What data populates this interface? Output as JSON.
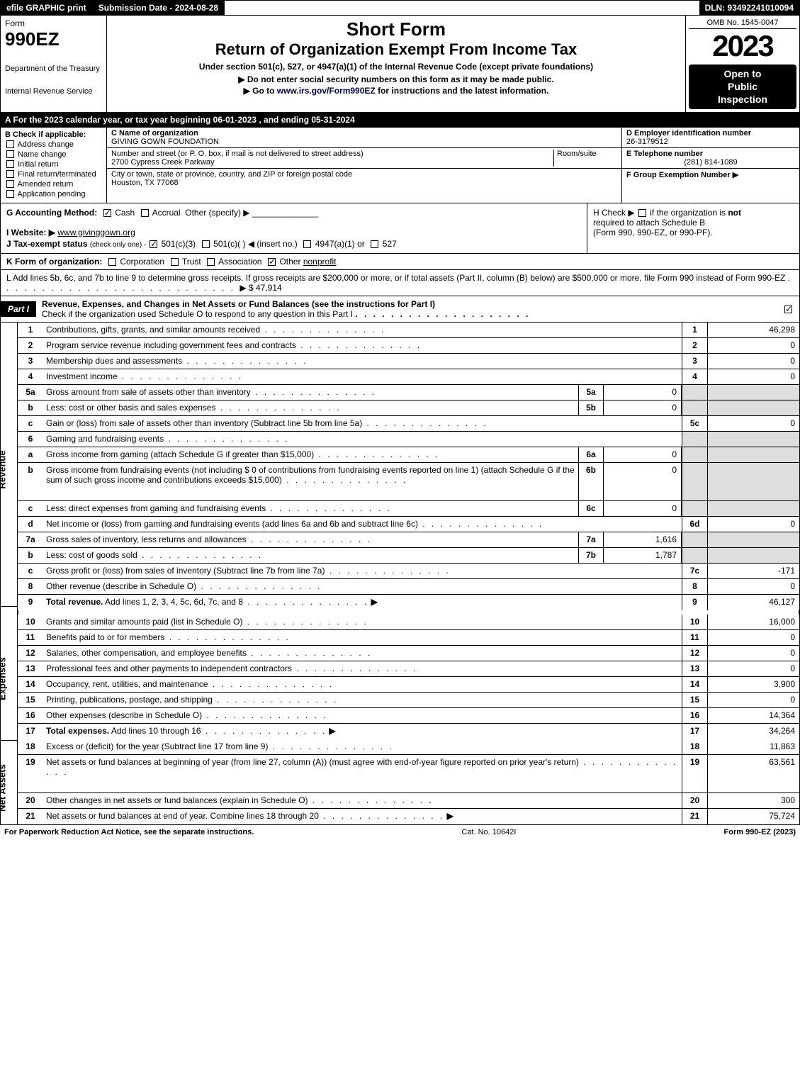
{
  "topbar": {
    "efile": "efile GRAPHIC print",
    "submission": "Submission Date - 2024-08-28",
    "dln": "DLN: 93492241010094"
  },
  "header": {
    "form_word": "Form",
    "form_num": "990EZ",
    "dept1": "Department of the Treasury",
    "dept2": "Internal Revenue Service",
    "short": "Short Form",
    "return": "Return of Organization Exempt From Income Tax",
    "under": "Under section 501(c), 527, or 4947(a)(1) of the Internal Revenue Code (except private foundations)",
    "note1": "▶ Do not enter social security numbers on this form as it may be made public.",
    "note2_pre": "▶ Go to ",
    "note2_link": "www.irs.gov/Form990EZ",
    "note2_post": " for instructions and the latest information.",
    "omb": "OMB No. 1545-0047",
    "year": "2023",
    "open1": "Open to",
    "open2": "Public",
    "open3": "Inspection"
  },
  "rowA": "A  For the 2023 calendar year, or tax year beginning 06-01-2023 , and ending 05-31-2024",
  "B": {
    "hdr": "B  Check if applicable:",
    "opts": [
      "Address change",
      "Name change",
      "Initial return",
      "Final return/terminated",
      "Amended return",
      "Application pending"
    ]
  },
  "C": {
    "name_lbl": "C Name of organization",
    "name": "GIVING GOWN FOUNDATION",
    "street_lbl": "Number and street (or P. O. box, if mail is not delivered to street address)",
    "room_lbl": "Room/suite",
    "street": "2700 Cypress Creek Parkway",
    "city_lbl": "City or town, state or province, country, and ZIP or foreign postal code",
    "city": "Houston, TX  77068"
  },
  "D": {
    "lbl": "D Employer identification number",
    "val": "26-3179512"
  },
  "E": {
    "lbl": "E Telephone number",
    "val": "(281) 814-1089"
  },
  "F": {
    "lbl": "F Group Exemption Number",
    "arrow": "▶"
  },
  "G": {
    "lbl": "G Accounting Method:",
    "cash": "Cash",
    "accrual": "Accrual",
    "other": "Other (specify) ▶"
  },
  "H": {
    "pre": "H  Check ▶",
    "post": "if the organization is ",
    "not": "not",
    "line2": "required to attach Schedule B",
    "line3": "(Form 990, 990-EZ, or 990-PF)."
  },
  "I": {
    "lbl": "I Website: ▶",
    "val": "www.givinggown.org"
  },
  "J": {
    "pre": "J Tax-exempt status ",
    "small": "(check only one) - ",
    "a": "501(c)(3)",
    "b": "501(c)(   ) ◀ (insert no.)",
    "c": "4947(a)(1) or",
    "d": "527"
  },
  "K": {
    "lbl": "K Form of organization:",
    "opts": [
      "Corporation",
      "Trust",
      "Association",
      "Other"
    ],
    "other_val": "nonprofit"
  },
  "L": {
    "text": "L Add lines 5b, 6c, and 7b to line 9 to determine gross receipts. If gross receipts are $200,000 or more, or if total assets (Part II, column (B) below) are $500,000 or more, file Form 990 instead of Form 990-EZ",
    "arrow": "▶ $",
    "val": "47,914"
  },
  "partI": {
    "tag": "Part I",
    "title": "Revenue, Expenses, and Changes in Net Assets or Fund Balances (see the instructions for Part I)",
    "sub": "Check if the organization used Schedule O to respond to any question in this Part I"
  },
  "sections": {
    "revenue_label": "Revenue",
    "expenses_label": "Expenses",
    "netassets_label": "Net Assets"
  },
  "revenue": [
    {
      "n": "1",
      "d": "Contributions, gifts, grants, and similar amounts received",
      "rn": "1",
      "rv": "46,298"
    },
    {
      "n": "2",
      "d": "Program service revenue including government fees and contracts",
      "rn": "2",
      "rv": "0"
    },
    {
      "n": "3",
      "d": "Membership dues and assessments",
      "rn": "3",
      "rv": "0"
    },
    {
      "n": "4",
      "d": "Investment income",
      "rn": "4",
      "rv": "0"
    },
    {
      "n": "5a",
      "d": "Gross amount from sale of assets other than inventory",
      "sn": "5a",
      "sv": "0",
      "grey": true
    },
    {
      "n": "b",
      "d": "Less: cost or other basis and sales expenses",
      "sn": "5b",
      "sv": "0",
      "grey": true
    },
    {
      "n": "c",
      "d": "Gain or (loss) from sale of assets other than inventory (Subtract line 5b from line 5a)",
      "rn": "5c",
      "rv": "0"
    },
    {
      "n": "6",
      "d": "Gaming and fundraising events",
      "grey": true,
      "noval": true
    },
    {
      "n": "a",
      "d": "Gross income from gaming (attach Schedule G if greater than $15,000)",
      "sn": "6a",
      "sv": "0",
      "grey": true
    },
    {
      "n": "b",
      "d": "Gross income from fundraising events (not including $  0                 of contributions from fundraising events reported on line 1) (attach Schedule G if the sum of such gross income and contributions exceeds $15,000)",
      "sn": "6b",
      "sv": "0",
      "grey": true,
      "tall": true
    },
    {
      "n": "c",
      "d": "Less: direct expenses from gaming and fundraising events",
      "sn": "6c",
      "sv": "0",
      "grey": true
    },
    {
      "n": "d",
      "d": "Net income or (loss) from gaming and fundraising events (add lines 6a and 6b and subtract line 6c)",
      "rn": "6d",
      "rv": "0"
    },
    {
      "n": "7a",
      "d": "Gross sales of inventory, less returns and allowances",
      "sn": "7a",
      "sv": "1,616",
      "grey": true
    },
    {
      "n": "b",
      "d": "Less: cost of goods sold",
      "sn": "7b",
      "sv": "1,787",
      "grey": true
    },
    {
      "n": "c",
      "d": "Gross profit or (loss) from sales of inventory (Subtract line 7b from line 7a)",
      "rn": "7c",
      "rv": "-171"
    },
    {
      "n": "8",
      "d": "Other revenue (describe in Schedule O)",
      "rn": "8",
      "rv": "0"
    },
    {
      "n": "9",
      "d": "Total revenue. Add lines 1, 2, 3, 4, 5c, 6d, 7c, and 8",
      "rn": "9",
      "rv": "46,127",
      "bold": true,
      "arrow": true
    }
  ],
  "expenses": [
    {
      "n": "10",
      "d": "Grants and similar amounts paid (list in Schedule O)",
      "rn": "10",
      "rv": "16,000"
    },
    {
      "n": "11",
      "d": "Benefits paid to or for members",
      "rn": "11",
      "rv": "0"
    },
    {
      "n": "12",
      "d": "Salaries, other compensation, and employee benefits",
      "rn": "12",
      "rv": "0"
    },
    {
      "n": "13",
      "d": "Professional fees and other payments to independent contractors",
      "rn": "13",
      "rv": "0"
    },
    {
      "n": "14",
      "d": "Occupancy, rent, utilities, and maintenance",
      "rn": "14",
      "rv": "3,900"
    },
    {
      "n": "15",
      "d": "Printing, publications, postage, and shipping",
      "rn": "15",
      "rv": "0"
    },
    {
      "n": "16",
      "d": "Other expenses (describe in Schedule O)",
      "rn": "16",
      "rv": "14,364"
    },
    {
      "n": "17",
      "d": "Total expenses. Add lines 10 through 16",
      "rn": "17",
      "rv": "34,264",
      "bold": true,
      "arrow": true
    }
  ],
  "netassets": [
    {
      "n": "18",
      "d": "Excess or (deficit) for the year (Subtract line 17 from line 9)",
      "rn": "18",
      "rv": "11,863"
    },
    {
      "n": "19",
      "d": "Net assets or fund balances at beginning of year (from line 27, column (A)) (must agree with end-of-year figure reported on prior year's return)",
      "rn": "19",
      "rv": "63,561",
      "tall": true,
      "greytop": true
    },
    {
      "n": "20",
      "d": "Other changes in net assets or fund balances (explain in Schedule O)",
      "rn": "20",
      "rv": "300"
    },
    {
      "n": "21",
      "d": "Net assets or fund balances at end of year. Combine lines 18 through 20",
      "rn": "21",
      "rv": "75,724",
      "arrow": true
    }
  ],
  "footer": {
    "l": "For Paperwork Reduction Act Notice, see the separate instructions.",
    "c": "Cat. No. 10642I",
    "r": "Form 990-EZ (2023)"
  }
}
